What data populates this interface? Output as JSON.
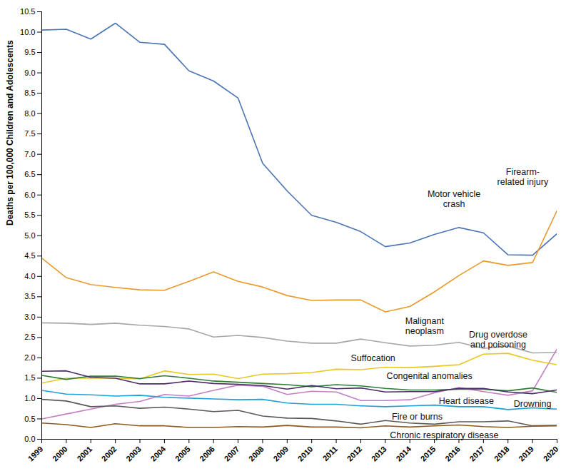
{
  "chart_data": {
    "type": "line",
    "y_label": "Deaths per 100,000 Children and Adolescents",
    "x": [
      1999,
      2000,
      2001,
      2002,
      2003,
      2004,
      2005,
      2006,
      2007,
      2008,
      2009,
      2010,
      2011,
      2012,
      2013,
      2014,
      2015,
      2016,
      2017,
      2018,
      2019,
      2020
    ],
    "xlim": [
      1999,
      2020
    ],
    "xticks": [
      1999,
      2000,
      2001,
      2002,
      2003,
      2004,
      2005,
      2006,
      2007,
      2008,
      2009,
      2010,
      2011,
      2012,
      2013,
      2014,
      2015,
      2016,
      2017,
      2018,
      2019,
      2020
    ],
    "ylim": [
      0,
      10.5
    ],
    "yticks": [
      {
        "value": 0,
        "label": "0.0"
      },
      0.5,
      {
        "value": 1,
        "label": "1.0"
      },
      1.5,
      {
        "value": 2,
        "label": "2.0"
      },
      2.5,
      {
        "value": 3,
        "label": "3.0"
      },
      3.5,
      {
        "value": 4,
        "label": "4.0"
      },
      4.5,
      {
        "value": 5,
        "label": "5.0"
      },
      5.5,
      {
        "value": 6,
        "label": "6.0"
      },
      6.5,
      {
        "value": 7,
        "label": "7.0"
      },
      7.5,
      {
        "value": 8,
        "label": "8.0"
      },
      8.5,
      {
        "value": 9,
        "label": "9.0"
      },
      9.5,
      {
        "value": 10,
        "label": "10.0"
      },
      10.5
    ],
    "grid": false,
    "series": [
      {
        "name": "Motor vehicle\ncrash",
        "color": "#4a74b4",
        "values": [
          10.05,
          10.07,
          9.83,
          10.22,
          9.75,
          9.7,
          9.05,
          8.8,
          8.38,
          6.78,
          6.1,
          5.5,
          5.33,
          5.1,
          4.73,
          4.82,
          5.03,
          5.2,
          5.07,
          4.53,
          4.52,
          5.05
        ]
      },
      {
        "name": "Firearm-\nrelated injury",
        "color": "#e89a2c",
        "values": [
          4.45,
          3.97,
          3.8,
          3.73,
          3.67,
          3.66,
          3.88,
          4.11,
          3.88,
          3.74,
          3.53,
          3.41,
          3.42,
          3.42,
          3.13,
          3.26,
          3.62,
          4.02,
          4.38,
          4.27,
          4.34,
          5.62
        ]
      },
      {
        "name": "Malignant\nneoplasm",
        "color": "#a6a6a6",
        "values": [
          2.86,
          2.85,
          2.82,
          2.85,
          2.8,
          2.77,
          2.71,
          2.51,
          2.55,
          2.5,
          2.41,
          2.36,
          2.36,
          2.46,
          2.37,
          2.29,
          2.31,
          2.38,
          2.23,
          2.29,
          2.12,
          2.13
        ]
      },
      {
        "name": "Drug overdose\nand poisoning",
        "color": "#c47fc4",
        "values": [
          0.5,
          0.62,
          0.74,
          0.86,
          0.93,
          1.1,
          1.06,
          1.2,
          1.33,
          1.3,
          1.1,
          1.18,
          1.16,
          0.95,
          0.95,
          0.97,
          1.14,
          1.27,
          1.17,
          1.08,
          1.19,
          2.22
        ]
      },
      {
        "name": "Suffocation",
        "color": "#e8c824",
        "values": [
          1.38,
          1.5,
          1.5,
          1.5,
          1.48,
          1.68,
          1.59,
          1.6,
          1.49,
          1.6,
          1.61,
          1.64,
          1.72,
          1.71,
          1.77,
          1.76,
          1.79,
          1.83,
          2.09,
          2.11,
          1.94,
          1.83
        ]
      },
      {
        "name": "Congenital anomalies",
        "color": "#2e7d32",
        "values": [
          1.57,
          1.47,
          1.55,
          1.55,
          1.49,
          1.56,
          1.5,
          1.43,
          1.4,
          1.37,
          1.34,
          1.29,
          1.34,
          1.31,
          1.25,
          1.21,
          1.21,
          1.23,
          1.23,
          1.19,
          1.26,
          1.15
        ]
      },
      {
        "name": "Heart disease",
        "color": "#1ea0d8",
        "values": [
          1.2,
          1.11,
          1.09,
          1.06,
          1.08,
          1.03,
          1.01,
          0.99,
          0.97,
          0.98,
          0.89,
          0.86,
          0.86,
          0.82,
          0.8,
          0.82,
          0.84,
          0.8,
          0.8,
          0.73,
          0.77,
          0.74
        ]
      },
      {
        "name": "Drowning",
        "color": "#4a2c6a",
        "values": [
          1.67,
          1.68,
          1.52,
          1.5,
          1.36,
          1.36,
          1.43,
          1.37,
          1.35,
          1.32,
          1.23,
          1.32,
          1.24,
          1.26,
          1.16,
          1.17,
          1.17,
          1.25,
          1.25,
          1.16,
          1.12,
          1.21
        ]
      },
      {
        "name": "Fire or burns",
        "color": "#5a5a5a",
        "values": [
          0.98,
          0.94,
          0.8,
          0.82,
          0.76,
          0.79,
          0.74,
          0.68,
          0.71,
          0.57,
          0.52,
          0.51,
          0.45,
          0.37,
          0.46,
          0.4,
          0.37,
          0.43,
          0.43,
          0.45,
          0.33,
          0.34
        ]
      },
      {
        "name": "Chronic respiratory disease",
        "color": "#8b5a1e",
        "values": [
          0.4,
          0.36,
          0.29,
          0.38,
          0.33,
          0.33,
          0.29,
          0.29,
          0.31,
          0.3,
          0.34,
          0.3,
          0.3,
          0.28,
          0.33,
          0.3,
          0.33,
          0.35,
          0.31,
          0.29,
          0.32,
          0.33
        ]
      }
    ]
  }
}
